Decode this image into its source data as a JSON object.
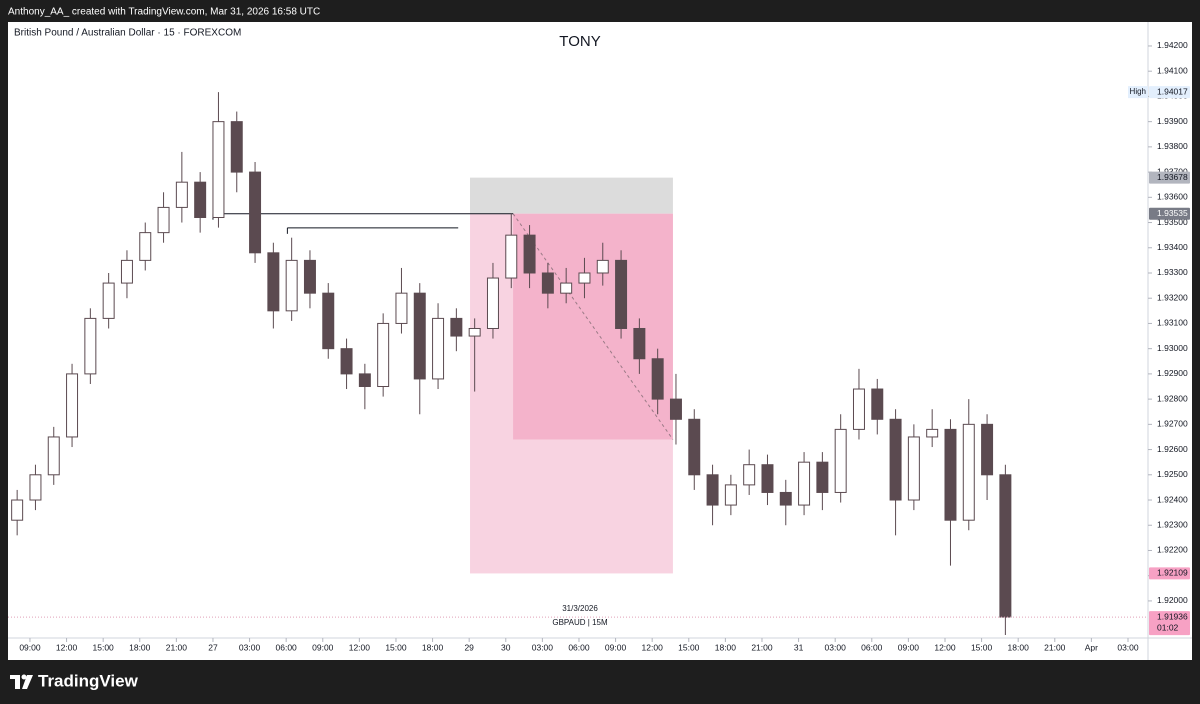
{
  "header": {
    "text": "Anthony_AA_ created with TradingView.com, Mar 31, 2026 16:58 UTC"
  },
  "footer": {
    "logo": "TradingView"
  },
  "chart_data": {
    "type": "candlestick",
    "title": "TONY",
    "symbol": "British Pound / Australian Dollar · 15 · FOREXCOM",
    "watermark": [
      "31/3/2026",
      "GBPAUD | 15M"
    ],
    "color": "#5b4a50",
    "grid": false,
    "x": [
      0.75,
      2.25,
      3.75,
      5.25,
      6.75,
      8.25,
      9.75,
      11.25,
      12.75,
      14.25,
      15.75,
      17.25,
      18.75,
      20.25,
      21.75,
      23.25,
      24.75,
      26.25,
      27.75,
      29.25,
      30.75,
      32.25,
      33.75,
      35.25,
      36.75,
      38.25,
      39.75,
      41.25,
      42.75,
      44.25,
      45.75,
      47.25,
      48.75,
      50.25,
      51.75,
      53.25,
      54.75,
      56.25,
      57.75,
      59.25,
      60.75,
      62.25,
      63.75,
      65.25,
      66.75,
      68.25,
      69.75,
      71.25,
      72.75,
      74.25,
      75.75,
      77.25,
      78.75,
      80.25,
      81.75
    ],
    "open": [
      1.9232,
      1.924,
      1.925,
      1.9265,
      1.929,
      1.9312,
      1.9326,
      1.9335,
      1.9346,
      1.9356,
      1.9366,
      1.9352,
      1.939,
      1.937,
      1.9338,
      1.9315,
      1.9335,
      1.9322,
      1.93,
      1.929,
      1.9285,
      1.931,
      1.9322,
      1.9288,
      1.9312,
      1.9305,
      1.9308,
      1.9328,
      1.9345,
      1.933,
      1.9322,
      1.9326,
      1.933,
      1.9335,
      1.9308,
      1.9296,
      1.928,
      1.9272,
      1.925,
      1.9238,
      1.9246,
      1.9254,
      1.9243,
      1.9238,
      1.9255,
      1.9243,
      1.9268,
      1.9284,
      1.9272,
      1.924,
      1.9265,
      1.9268,
      1.9232,
      1.927,
      1.925
    ],
    "high": [
      1.9244,
      1.9254,
      1.9269,
      1.9294,
      1.9316,
      1.933,
      1.9339,
      1.935,
      1.9362,
      1.9378,
      1.937,
      1.94017,
      1.9394,
      1.9374,
      1.9342,
      1.9344,
      1.9339,
      1.9326,
      1.9304,
      1.9294,
      1.9314,
      1.9332,
      1.9326,
      1.9318,
      1.9316,
      1.9312,
      1.9334,
      1.93535,
      1.9349,
      1.9334,
      1.9332,
      1.9336,
      1.9342,
      1.9339,
      1.9312,
      1.93,
      1.929,
      1.9276,
      1.9254,
      1.925,
      1.926,
      1.9258,
      1.9248,
      1.9259,
      1.9259,
      1.9274,
      1.9292,
      1.9288,
      1.9276,
      1.927,
      1.9276,
      1.9272,
      1.928,
      1.9274,
      1.9254
    ],
    "low": [
      1.9226,
      1.9236,
      1.9246,
      1.9261,
      1.9286,
      1.9308,
      1.932,
      1.9331,
      1.9342,
      1.935,
      1.9346,
      1.9348,
      1.9362,
      1.9334,
      1.9308,
      1.9311,
      1.9316,
      1.9296,
      1.9284,
      1.9276,
      1.9281,
      1.9306,
      1.9274,
      1.9284,
      1.9299,
      1.9283,
      1.9304,
      1.9324,
      1.9324,
      1.9316,
      1.9318,
      1.932,
      1.9325,
      1.9304,
      1.929,
      1.9274,
      1.9262,
      1.9244,
      1.923,
      1.9234,
      1.9242,
      1.9238,
      1.923,
      1.9234,
      1.9236,
      1.9239,
      1.9264,
      1.9266,
      1.9226,
      1.9236,
      1.9261,
      1.9214,
      1.9228,
      1.924,
      1.91865
    ],
    "close": [
      1.924,
      1.925,
      1.9265,
      1.929,
      1.9312,
      1.9326,
      1.9335,
      1.9346,
      1.9356,
      1.9366,
      1.9352,
      1.939,
      1.937,
      1.9338,
      1.9315,
      1.9335,
      1.9322,
      1.93,
      1.929,
      1.9285,
      1.931,
      1.9322,
      1.9288,
      1.9312,
      1.9305,
      1.9308,
      1.9328,
      1.9345,
      1.933,
      1.9322,
      1.9326,
      1.933,
      1.9335,
      1.9308,
      1.9296,
      1.928,
      1.9272,
      1.925,
      1.9238,
      1.9246,
      1.9254,
      1.9243,
      1.9238,
      1.9255,
      1.9243,
      1.9268,
      1.9284,
      1.9272,
      1.924,
      1.9265,
      1.9268,
      1.9232,
      1.927,
      1.925,
      1.91936
    ],
    "xlim": [
      0,
      93.44
    ],
    "xticks": [
      {
        "value": 1.8,
        "label": "09:00"
      },
      {
        "value": 4.8,
        "label": "12:00"
      },
      {
        "value": 7.8,
        "label": "15:00"
      },
      {
        "value": 10.8,
        "label": "18:00"
      },
      {
        "value": 13.8,
        "label": "21:00"
      },
      {
        "value": 16.8,
        "label": "27"
      },
      {
        "value": 19.8,
        "label": "03:00"
      },
      {
        "value": 22.8,
        "label": "06:00"
      },
      {
        "value": 25.8,
        "label": "09:00"
      },
      {
        "value": 28.8,
        "label": "12:00"
      },
      {
        "value": 31.8,
        "label": "15:00"
      },
      {
        "value": 34.8,
        "label": "18:00"
      },
      {
        "value": 37.8,
        "label": "29"
      },
      {
        "value": 40.8,
        "label": "30"
      },
      {
        "value": 43.8,
        "label": "03:00"
      },
      {
        "value": 46.8,
        "label": "06:00"
      },
      {
        "value": 49.8,
        "label": "09:00"
      },
      {
        "value": 52.8,
        "label": "12:00"
      },
      {
        "value": 55.8,
        "label": "15:00"
      },
      {
        "value": 58.8,
        "label": "18:00"
      },
      {
        "value": 61.8,
        "label": "21:00"
      },
      {
        "value": 64.8,
        "label": "31"
      },
      {
        "value": 67.8,
        "label": "03:00"
      },
      {
        "value": 70.8,
        "label": "06:00"
      },
      {
        "value": 73.8,
        "label": "09:00"
      },
      {
        "value": 76.8,
        "label": "12:00"
      },
      {
        "value": 79.8,
        "label": "15:00"
      },
      {
        "value": 82.8,
        "label": "18:00"
      },
      {
        "value": 85.8,
        "label": "21:00"
      },
      {
        "value": 88.8,
        "label": "Apr"
      },
      {
        "value": 91.8,
        "label": "03:00"
      }
    ],
    "ylim": [
      1.91853,
      1.94295
    ],
    "yticks": [
      {
        "value": 1.942,
        "label": "1.94200"
      },
      {
        "value": 1.941,
        "label": "1.94100"
      },
      {
        "value": 1.94,
        "label": "1.94000"
      },
      {
        "value": 1.939,
        "label": "1.93900"
      },
      {
        "value": 1.938,
        "label": "1.93800"
      },
      {
        "value": 1.937,
        "label": "1.93700"
      },
      {
        "value": 1.936,
        "label": "1.93600"
      },
      {
        "value": 1.935,
        "label": "1.93500"
      },
      {
        "value": 1.934,
        "label": "1.93400"
      },
      {
        "value": 1.933,
        "label": "1.93300"
      },
      {
        "value": 1.932,
        "label": "1.93200"
      },
      {
        "value": 1.931,
        "label": "1.93100"
      },
      {
        "value": 1.93,
        "label": "1.93000"
      },
      {
        "value": 1.929,
        "label": "1.92900"
      },
      {
        "value": 1.928,
        "label": "1.92800"
      },
      {
        "value": 1.927,
        "label": "1.92700"
      },
      {
        "value": 1.926,
        "label": "1.92600"
      },
      {
        "value": 1.925,
        "label": "1.92500"
      },
      {
        "value": 1.924,
        "label": "1.92400"
      },
      {
        "value": 1.923,
        "label": "1.92300"
      },
      {
        "value": 1.922,
        "label": "1.92200"
      },
      {
        "value": 1.921,
        "label": "1.92100"
      },
      {
        "value": 1.92,
        "label": "1.92000"
      }
    ],
    "price_tags": [
      {
        "label": "High",
        "value": 1.94017,
        "color": "#e3effd",
        "text_color": "#131722"
      },
      {
        "value": 1.93678,
        "color": "#b2b5be",
        "text_color": "#131722"
      },
      {
        "value": 1.93535,
        "color": "#787b86",
        "text_color": "#ffffff"
      },
      {
        "value": 1.92109,
        "color": "#f7a1c4",
        "text_color": "#131722"
      },
      {
        "value": 1.91936,
        "countdown": "01:02",
        "color": "#f7a1c4",
        "text_color": "#131722"
      }
    ],
    "lines": [
      {
        "x": [
          16.8,
          41.4
        ],
        "y": 1.93535
      },
      {
        "x": [
          22.9,
          36.9
        ],
        "y": 1.93479
      }
    ],
    "position": {
      "x": [
        37.87,
        54.5
      ],
      "entry_x": 41.4,
      "entry": 1.93535,
      "stop": 1.93678,
      "target": 1.92109,
      "progress": 1.9264,
      "stop_color": "#dcdcdc",
      "target_color": "#f8d3e1",
      "progress_color": "#f4b3cb"
    }
  }
}
